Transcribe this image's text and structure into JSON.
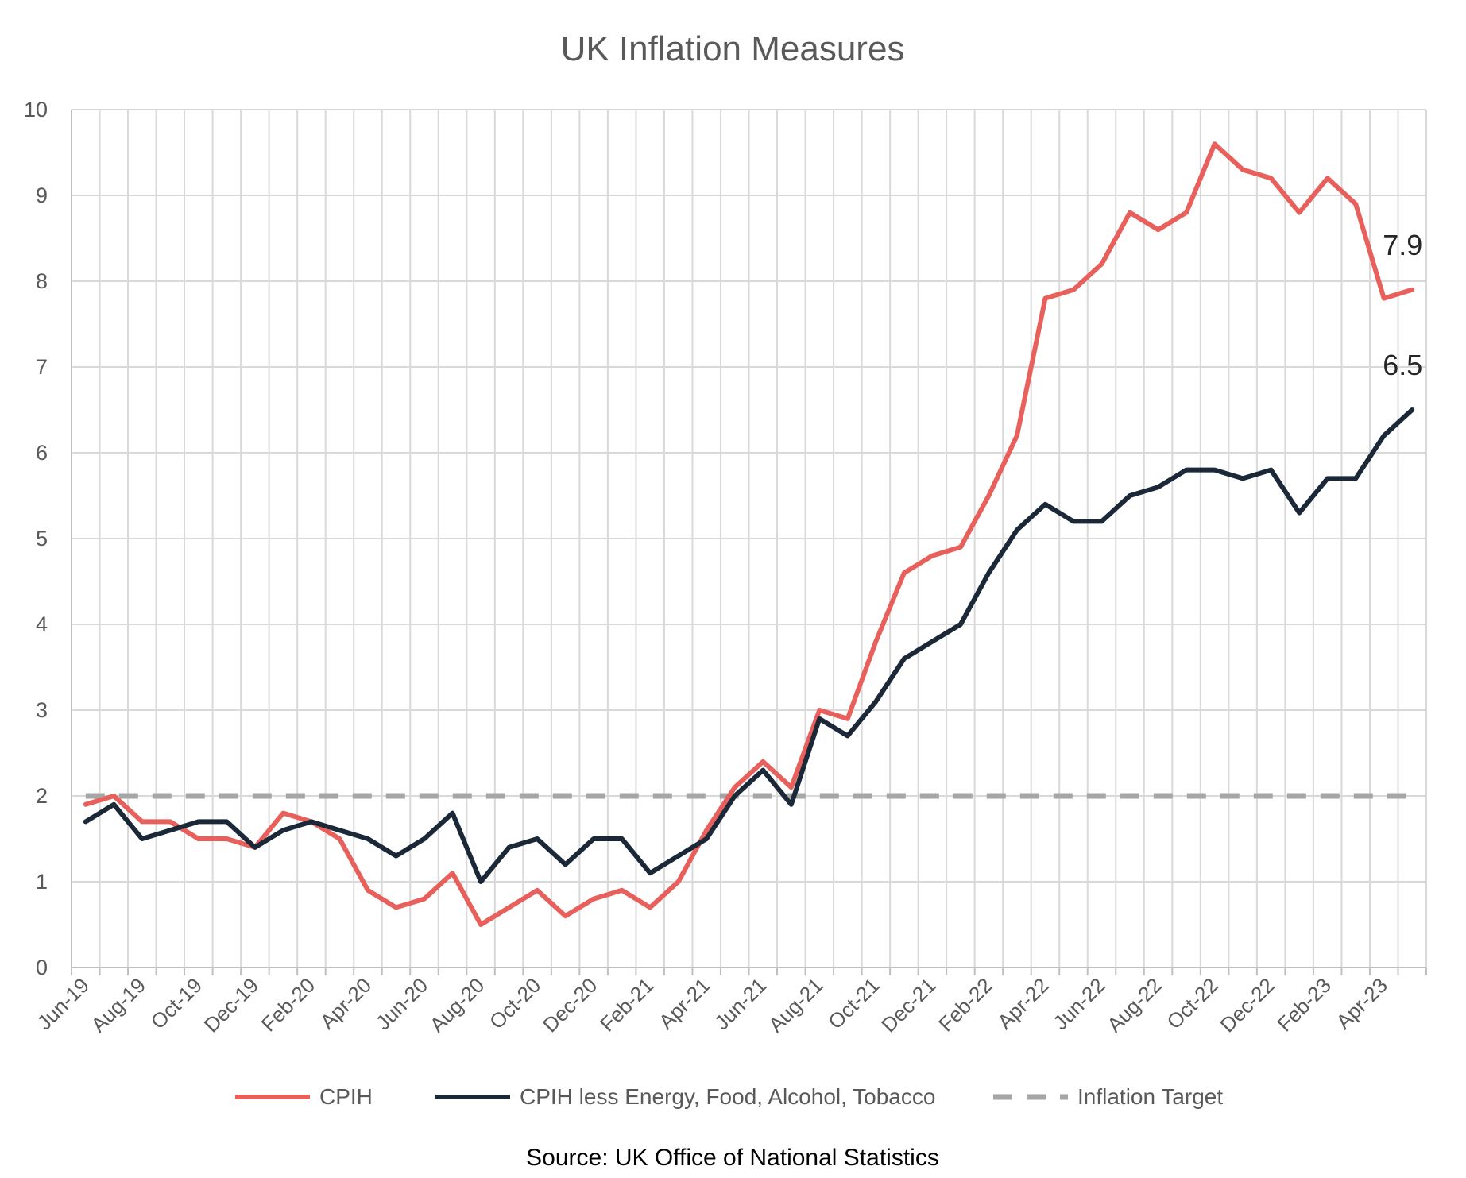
{
  "chart_data": {
    "type": "line",
    "title": "UK Inflation Measures",
    "source": "Source: UK Office of National Statistics",
    "ylim": [
      0,
      10
    ],
    "yticks": [
      0,
      1,
      2,
      3,
      4,
      5,
      6,
      7,
      8,
      9,
      10
    ],
    "grid": true,
    "legend_position": "bottom",
    "categories": [
      "Jun-19",
      "Jul-19",
      "Aug-19",
      "Sep-19",
      "Oct-19",
      "Nov-19",
      "Dec-19",
      "Jan-20",
      "Feb-20",
      "Mar-20",
      "Apr-20",
      "May-20",
      "Jun-20",
      "Jul-20",
      "Aug-20",
      "Sep-20",
      "Oct-20",
      "Nov-20",
      "Dec-20",
      "Jan-21",
      "Feb-21",
      "Mar-21",
      "Apr-21",
      "May-21",
      "Jun-21",
      "Jul-21",
      "Aug-21",
      "Sep-21",
      "Oct-21",
      "Nov-21",
      "Dec-21",
      "Jan-22",
      "Feb-22",
      "Mar-22",
      "Apr-22",
      "May-22",
      "Jun-22",
      "Jul-22",
      "Aug-22",
      "Sep-22",
      "Oct-22",
      "Nov-22",
      "Dec-22",
      "Jan-23",
      "Feb-23",
      "Mar-23",
      "Apr-23",
      "May-23"
    ],
    "xtick_labels": [
      "Jun-19",
      "Aug-19",
      "Oct-19",
      "Dec-19",
      "Feb-20",
      "Apr-20",
      "Jun-20",
      "Aug-20",
      "Oct-20",
      "Dec-20",
      "Feb-21",
      "Apr-21",
      "Jun-21",
      "Aug-21",
      "Oct-21",
      "Dec-21",
      "Feb-22",
      "Apr-22",
      "Jun-22",
      "Aug-22",
      "Oct-22",
      "Dec-22",
      "Feb-23",
      "Apr-23"
    ],
    "series": [
      {
        "name": "CPIH",
        "color": "#e8605c",
        "style": "solid",
        "values": [
          1.9,
          2.0,
          1.7,
          1.7,
          1.5,
          1.5,
          1.4,
          1.8,
          1.7,
          1.5,
          0.9,
          0.7,
          0.8,
          1.1,
          0.5,
          0.7,
          0.9,
          0.6,
          0.8,
          0.9,
          0.7,
          1.0,
          1.6,
          2.1,
          2.4,
          2.1,
          3.0,
          2.9,
          3.8,
          4.6,
          4.8,
          4.9,
          5.5,
          6.2,
          7.8,
          7.9,
          8.2,
          8.8,
          8.6,
          8.8,
          9.6,
          9.3,
          9.2,
          8.8,
          9.2,
          8.9,
          7.8,
          7.9
        ],
        "end_label": "7.9"
      },
      {
        "name": "CPIH less Energy, Food, Alcohol, Tobacco",
        "color": "#1b2838",
        "style": "solid",
        "values": [
          1.7,
          1.9,
          1.5,
          1.6,
          1.7,
          1.7,
          1.4,
          1.6,
          1.7,
          1.6,
          1.5,
          1.3,
          1.5,
          1.8,
          1.0,
          1.4,
          1.5,
          1.2,
          1.5,
          1.5,
          1.1,
          1.3,
          1.5,
          2.0,
          2.3,
          1.9,
          2.9,
          2.7,
          3.1,
          3.6,
          3.8,
          4.0,
          4.6,
          5.1,
          5.4,
          5.2,
          5.2,
          5.5,
          5.6,
          5.8,
          5.8,
          5.7,
          5.8,
          5.3,
          5.7,
          5.7,
          6.2,
          6.5
        ],
        "end_label": "6.5"
      },
      {
        "name": "Inflation Target",
        "color": "#a6a6a6",
        "style": "dashed",
        "values": [
          2,
          2,
          2,
          2,
          2,
          2,
          2,
          2,
          2,
          2,
          2,
          2,
          2,
          2,
          2,
          2,
          2,
          2,
          2,
          2,
          2,
          2,
          2,
          2,
          2,
          2,
          2,
          2,
          2,
          2,
          2,
          2,
          2,
          2,
          2,
          2,
          2,
          2,
          2,
          2,
          2,
          2,
          2,
          2,
          2,
          2,
          2,
          2
        ]
      }
    ]
  }
}
